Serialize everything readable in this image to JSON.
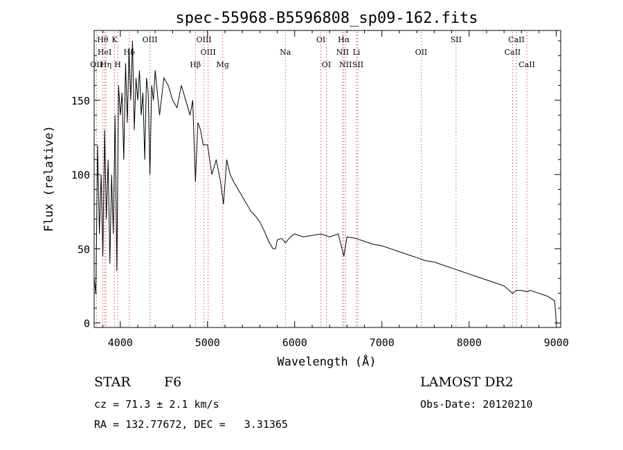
{
  "chart_data": {
    "type": "line",
    "title": "spec-55968-B5596808_sp09-162.fits",
    "xlabel": "Wavelength (Å)",
    "ylabel": "Flux (relative)",
    "xlim": [
      3700,
      9050
    ],
    "ylim": [
      -3,
      197
    ],
    "xticks": [
      4000,
      5000,
      6000,
      7000,
      8000,
      9000
    ],
    "yticks": [
      0,
      50,
      100,
      150
    ],
    "grid": false,
    "series": [
      {
        "x": [
          3700,
          3720,
          3740,
          3760,
          3780,
          3800,
          3820,
          3840,
          3860,
          3880,
          3900,
          3920,
          3940,
          3960,
          3980,
          4000,
          4020,
          4040,
          4060,
          4080,
          4100,
          4120,
          4140,
          4160,
          4180,
          4200,
          4220,
          4240,
          4260,
          4280,
          4300,
          4320,
          4340,
          4360,
          4380,
          4400,
          4450,
          4500,
          4550,
          4600,
          4650,
          4700,
          4750,
          4800,
          4830,
          4861,
          4890,
          4920,
          4950,
          5000,
          5050,
          5100,
          5150,
          5183,
          5220,
          5260,
          5300,
          5350,
          5400,
          5450,
          5500,
          5550,
          5600,
          5650,
          5700,
          5750,
          5780,
          5800,
          5850,
          5893,
          5950,
          6000,
          6100,
          6200,
          6300,
          6400,
          6500,
          6563,
          6600,
          6700,
          6800,
          6900,
          7000,
          7100,
          7200,
          7300,
          7400,
          7500,
          7600,
          7700,
          7800,
          7900,
          8000,
          8100,
          8200,
          8300,
          8400,
          8498,
          8542,
          8600,
          8662,
          8700,
          8800,
          8900,
          8980,
          9000
        ],
        "y": [
          30,
          20,
          120,
          60,
          100,
          45,
          130,
          70,
          110,
          40,
          100,
          60,
          140,
          35,
          160,
          140,
          155,
          110,
          175,
          135,
          185,
          150,
          190,
          130,
          165,
          150,
          170,
          140,
          155,
          110,
          165,
          155,
          100,
          160,
          150,
          170,
          140,
          165,
          160,
          150,
          145,
          160,
          150,
          140,
          150,
          95,
          135,
          130,
          120,
          120,
          100,
          110,
          95,
          80,
          110,
          100,
          95,
          90,
          85,
          80,
          75,
          72,
          68,
          62,
          55,
          50,
          50,
          56,
          57,
          54,
          58,
          60,
          58,
          59,
          60,
          58,
          60,
          45,
          58,
          57,
          55,
          53,
          52,
          50,
          48,
          46,
          44,
          42,
          41,
          39,
          37,
          35,
          33,
          31,
          29,
          27,
          25,
          20,
          22,
          22,
          21,
          22,
          20,
          18,
          15,
          0
        ]
      }
    ],
    "annotations": [
      {
        "x": 3726,
        "lines": [
          "",
          "",
          "OII"
        ]
      },
      {
        "x": 3798,
        "lines": [
          "Hθ",
          "",
          ""
        ]
      },
      {
        "x": 3820,
        "lines": [
          "",
          "HeI",
          ""
        ]
      },
      {
        "x": 3835,
        "lines": [
          "",
          "",
          "Hη"
        ]
      },
      {
        "x": 3934,
        "lines": [
          "K",
          "",
          ""
        ]
      },
      {
        "x": 3970,
        "lines": [
          "",
          "",
          "H"
        ]
      },
      {
        "x": 4102,
        "lines": [
          "",
          "Hδ",
          ""
        ]
      },
      {
        "x": 4340,
        "lines": [
          "OIII",
          "",
          ""
        ]
      },
      {
        "x": 4861,
        "lines": [
          "",
          "",
          "Hβ"
        ]
      },
      {
        "x": 4959,
        "lines": [
          "OIII",
          "",
          ""
        ]
      },
      {
        "x": 5007,
        "lines": [
          "",
          "OIII",
          ""
        ]
      },
      {
        "x": 5175,
        "lines": [
          "",
          "",
          "Mg"
        ]
      },
      {
        "x": 5893,
        "lines": [
          "",
          "Na",
          ""
        ]
      },
      {
        "x": 6300,
        "lines": [
          "OI",
          "",
          ""
        ]
      },
      {
        "x": 6363,
        "lines": [
          "",
          "",
          "OI"
        ]
      },
      {
        "x": 6548,
        "lines": [
          "",
          "NII",
          ""
        ]
      },
      {
        "x": 6563,
        "lines": [
          "Hα",
          "",
          ""
        ]
      },
      {
        "x": 6583,
        "lines": [
          "",
          "",
          "NII"
        ]
      },
      {
        "x": 6708,
        "lines": [
          "",
          "Li",
          ""
        ]
      },
      {
        "x": 6724,
        "lines": [
          "",
          "",
          "SII"
        ]
      },
      {
        "x": 7450,
        "lines": [
          "",
          "OII",
          ""
        ]
      },
      {
        "x": 7850,
        "lines": [
          "SII",
          "",
          ""
        ]
      },
      {
        "x": 8498,
        "lines": [
          "",
          "CaII",
          ""
        ]
      },
      {
        "x": 8542,
        "lines": [
          "CaII",
          "",
          ""
        ]
      },
      {
        "x": 8662,
        "lines": [
          "",
          "",
          "CaII"
        ]
      }
    ]
  },
  "info": {
    "class": "STAR",
    "subclass": "F6",
    "survey": "LAMOST DR2",
    "cz": "cz = 71.3 ± 2.1 km/s",
    "obs_date": "Obs-Date: 20120210",
    "coords": "RA = 132.77672, DEC =   3.31365"
  }
}
